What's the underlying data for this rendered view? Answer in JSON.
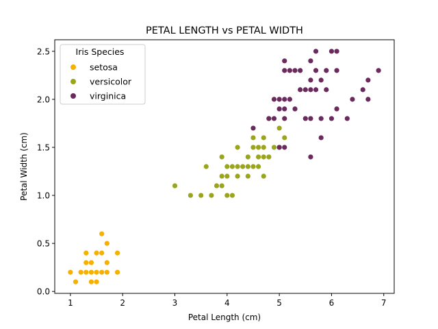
{
  "chart_data": {
    "type": "scatter",
    "title": "PETAL LENGTH vs PETAL WIDTH",
    "xlabel": "Petal Length (cm)",
    "ylabel": "Petal Width (cm)",
    "xlim": [
      0.7,
      7.2
    ],
    "ylim": [
      -0.02,
      2.62
    ],
    "x_ticks": [
      "1",
      "2",
      "3",
      "4",
      "5",
      "6",
      "7"
    ],
    "y_ticks": [
      "0.0",
      "0.5",
      "1.0",
      "1.5",
      "2.0",
      "2.5"
    ],
    "grid": false,
    "legend": {
      "title": "Iris Species",
      "placement": "top-left"
    },
    "series": [
      {
        "name": "setosa",
        "color": "#f5b000",
        "points": [
          [
            1.0,
            0.2
          ],
          [
            1.1,
            0.1
          ],
          [
            1.2,
            0.2
          ],
          [
            1.3,
            0.2
          ],
          [
            1.3,
            0.3
          ],
          [
            1.3,
            0.4
          ],
          [
            1.4,
            0.1
          ],
          [
            1.4,
            0.2
          ],
          [
            1.4,
            0.3
          ],
          [
            1.5,
            0.1
          ],
          [
            1.5,
            0.2
          ],
          [
            1.5,
            0.4
          ],
          [
            1.6,
            0.2
          ],
          [
            1.6,
            0.4
          ],
          [
            1.6,
            0.6
          ],
          [
            1.7,
            0.2
          ],
          [
            1.7,
            0.3
          ],
          [
            1.7,
            0.5
          ],
          [
            1.9,
            0.2
          ],
          [
            1.9,
            0.4
          ]
        ]
      },
      {
        "name": "versicolor",
        "color": "#9aa51d",
        "points": [
          [
            3.0,
            1.1
          ],
          [
            3.3,
            1.0
          ],
          [
            3.5,
            1.0
          ],
          [
            3.6,
            1.3
          ],
          [
            3.7,
            1.0
          ],
          [
            3.8,
            1.1
          ],
          [
            3.9,
            1.1
          ],
          [
            3.9,
            1.2
          ],
          [
            3.9,
            1.4
          ],
          [
            4.0,
            1.0
          ],
          [
            4.0,
            1.2
          ],
          [
            4.0,
            1.3
          ],
          [
            4.1,
            1.0
          ],
          [
            4.1,
            1.3
          ],
          [
            4.2,
            1.2
          ],
          [
            4.2,
            1.3
          ],
          [
            4.2,
            1.5
          ],
          [
            4.3,
            1.3
          ],
          [
            4.4,
            1.2
          ],
          [
            4.4,
            1.3
          ],
          [
            4.4,
            1.4
          ],
          [
            4.5,
            1.3
          ],
          [
            4.5,
            1.5
          ],
          [
            4.5,
            1.6
          ],
          [
            4.6,
            1.3
          ],
          [
            4.6,
            1.4
          ],
          [
            4.6,
            1.5
          ],
          [
            4.7,
            1.2
          ],
          [
            4.7,
            1.4
          ],
          [
            4.7,
            1.5
          ],
          [
            4.7,
            1.6
          ],
          [
            4.8,
            1.4
          ],
          [
            4.9,
            1.5
          ],
          [
            5.0,
            1.7
          ],
          [
            5.1,
            1.6
          ],
          [
            5.0,
            1.5
          ],
          [
            4.8,
            1.8
          ]
        ]
      },
      {
        "name": "virginica",
        "color": "#6b2a5d",
        "points": [
          [
            4.5,
            1.7
          ],
          [
            4.8,
            1.8
          ],
          [
            4.9,
            1.8
          ],
          [
            4.9,
            2.0
          ],
          [
            5.0,
            1.5
          ],
          [
            5.0,
            1.9
          ],
          [
            5.0,
            2.0
          ],
          [
            5.1,
            1.5
          ],
          [
            5.1,
            1.8
          ],
          [
            5.1,
            1.9
          ],
          [
            5.1,
            2.0
          ],
          [
            5.1,
            2.3
          ],
          [
            5.1,
            2.4
          ],
          [
            5.2,
            2.0
          ],
          [
            5.2,
            2.3
          ],
          [
            5.3,
            1.9
          ],
          [
            5.3,
            2.3
          ],
          [
            5.4,
            2.1
          ],
          [
            5.4,
            2.3
          ],
          [
            5.5,
            1.8
          ],
          [
            5.5,
            2.1
          ],
          [
            5.6,
            1.4
          ],
          [
            5.6,
            1.8
          ],
          [
            5.6,
            2.1
          ],
          [
            5.6,
            2.2
          ],
          [
            5.6,
            2.4
          ],
          [
            5.7,
            2.1
          ],
          [
            5.7,
            2.3
          ],
          [
            5.7,
            2.5
          ],
          [
            5.8,
            1.6
          ],
          [
            5.8,
            1.8
          ],
          [
            5.8,
            2.2
          ],
          [
            5.9,
            2.1
          ],
          [
            5.9,
            2.3
          ],
          [
            6.0,
            1.8
          ],
          [
            6.0,
            2.5
          ],
          [
            6.1,
            1.9
          ],
          [
            6.1,
            2.3
          ],
          [
            6.1,
            2.5
          ],
          [
            6.3,
            1.8
          ],
          [
            6.4,
            2.0
          ],
          [
            6.6,
            2.1
          ],
          [
            6.7,
            2.0
          ],
          [
            6.7,
            2.2
          ],
          [
            6.9,
            2.3
          ]
        ]
      }
    ]
  }
}
